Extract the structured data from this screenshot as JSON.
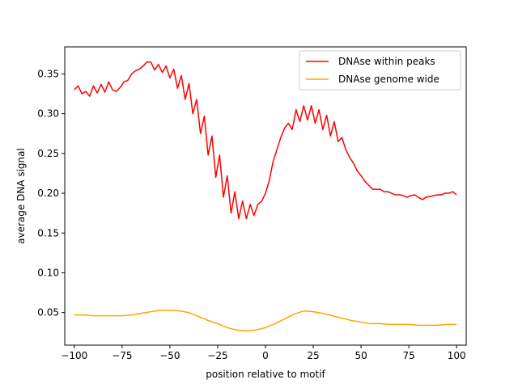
{
  "chart_data": {
    "type": "line",
    "title": "",
    "xlabel": "position relative to motif",
    "ylabel": "average DNA signal",
    "xlim": [
      -105,
      105
    ],
    "ylim": [
      0.009,
      0.384
    ],
    "xticks": [
      -100,
      -75,
      -50,
      -25,
      0,
      25,
      50,
      75,
      100
    ],
    "xtick_labels": [
      "−100",
      "−75",
      "−50",
      "−25",
      "0",
      "25",
      "50",
      "75",
      "100"
    ],
    "yticks": [
      0.05,
      0.1,
      0.15,
      0.2,
      0.25,
      0.3,
      0.35
    ],
    "ytick_labels": [
      "0.05",
      "0.10",
      "0.15",
      "0.20",
      "0.25",
      "0.30",
      "0.35"
    ],
    "grid": false,
    "legend_position": "top-right",
    "series": [
      {
        "name": "DNAse within peaks",
        "color": "#ff0000",
        "x": [
          -100,
          -98,
          -96,
          -94,
          -92,
          -90,
          -88,
          -86,
          -84,
          -82,
          -80,
          -78,
          -76,
          -74,
          -72,
          -70,
          -68,
          -66,
          -64,
          -62,
          -60,
          -58,
          -56,
          -54,
          -52,
          -50,
          -48,
          -46,
          -44,
          -42,
          -40,
          -38,
          -36,
          -34,
          -32,
          -30,
          -28,
          -26,
          -24,
          -22,
          -20,
          -18,
          -16,
          -14,
          -12,
          -10,
          -8,
          -6,
          -4,
          -2,
          0,
          2,
          4,
          6,
          8,
          10,
          12,
          14,
          16,
          18,
          20,
          22,
          24,
          26,
          28,
          30,
          32,
          34,
          36,
          38,
          40,
          42,
          44,
          46,
          48,
          50,
          52,
          54,
          56,
          58,
          60,
          62,
          64,
          66,
          68,
          70,
          72,
          74,
          76,
          78,
          80,
          82,
          84,
          86,
          88,
          90,
          92,
          94,
          96,
          98,
          100
        ],
        "y": [
          0.33,
          0.335,
          0.325,
          0.328,
          0.322,
          0.335,
          0.326,
          0.337,
          0.327,
          0.34,
          0.33,
          0.328,
          0.333,
          0.34,
          0.342,
          0.35,
          0.354,
          0.356,
          0.36,
          0.365,
          0.365,
          0.355,
          0.362,
          0.352,
          0.36,
          0.345,
          0.356,
          0.332,
          0.348,
          0.318,
          0.338,
          0.3,
          0.318,
          0.275,
          0.297,
          0.248,
          0.272,
          0.22,
          0.248,
          0.195,
          0.222,
          0.175,
          0.202,
          0.168,
          0.19,
          0.168,
          0.186,
          0.172,
          0.186,
          0.19,
          0.2,
          0.216,
          0.24,
          0.255,
          0.27,
          0.282,
          0.288,
          0.28,
          0.305,
          0.29,
          0.31,
          0.292,
          0.31,
          0.288,
          0.305,
          0.28,
          0.298,
          0.272,
          0.29,
          0.265,
          0.27,
          0.255,
          0.245,
          0.238,
          0.228,
          0.222,
          0.215,
          0.21,
          0.205,
          0.205,
          0.205,
          0.202,
          0.202,
          0.2,
          0.198,
          0.198,
          0.197,
          0.195,
          0.197,
          0.198,
          0.195,
          0.192,
          0.195,
          0.196,
          0.197,
          0.198,
          0.198,
          0.2,
          0.2,
          0.202,
          0.198
        ]
      },
      {
        "name": "DNAse genome wide",
        "color": "#ffa500",
        "x": [
          -100,
          -95,
          -90,
          -85,
          -80,
          -75,
          -70,
          -65,
          -60,
          -55,
          -50,
          -45,
          -40,
          -35,
          -30,
          -25,
          -20,
          -15,
          -10,
          -5,
          0,
          5,
          10,
          15,
          20,
          25,
          30,
          35,
          40,
          45,
          50,
          55,
          60,
          65,
          70,
          75,
          80,
          85,
          90,
          95,
          100
        ],
        "y": [
          0.047,
          0.047,
          0.046,
          0.046,
          0.046,
          0.046,
          0.047,
          0.049,
          0.051,
          0.053,
          0.053,
          0.052,
          0.05,
          0.045,
          0.04,
          0.036,
          0.031,
          0.028,
          0.027,
          0.028,
          0.031,
          0.036,
          0.042,
          0.048,
          0.052,
          0.051,
          0.049,
          0.046,
          0.043,
          0.04,
          0.038,
          0.036,
          0.036,
          0.035,
          0.035,
          0.035,
          0.034,
          0.034,
          0.034,
          0.035,
          0.035
        ]
      }
    ]
  }
}
